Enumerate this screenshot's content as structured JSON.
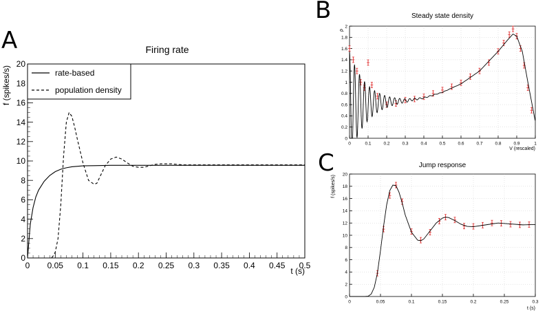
{
  "panels": {
    "A": {
      "letter": "A",
      "chart_data": {
        "type": "line",
        "title": "Firing rate",
        "xlabel": "t (s)",
        "ylabel": "f (spikes/s)",
        "xlim": [
          0,
          0.5
        ],
        "ylim": [
          0,
          20
        ],
        "x_ticks": [
          "0",
          "0.05",
          "0.1",
          "0.15",
          "0.2",
          "0.25",
          "0.3",
          "0.35",
          "0.4",
          "0.45",
          "0.5"
        ],
        "y_ticks": [
          "0",
          "2",
          "4",
          "6",
          "8",
          "10",
          "12",
          "14",
          "16",
          "18",
          "20"
        ],
        "legend_position": "top-left",
        "series": [
          {
            "name": "rate-based",
            "style": "solid",
            "x": [
              0,
              0.005,
              0.01,
              0.015,
              0.02,
              0.03,
              0.04,
              0.05,
              0.06,
              0.07,
              0.08,
              0.1,
              0.12,
              0.15,
              0.2,
              0.3,
              0.4,
              0.5
            ],
            "y": [
              0,
              3.5,
              5.2,
              6.3,
              7.0,
              7.9,
              8.5,
              8.9,
              9.15,
              9.3,
              9.4,
              9.5,
              9.52,
              9.55,
              9.55,
              9.55,
              9.55,
              9.55
            ]
          },
          {
            "name": "population density",
            "style": "dashed",
            "x": [
              0,
              0.04,
              0.045,
              0.05,
              0.055,
              0.06,
              0.065,
              0.07,
              0.075,
              0.08,
              0.085,
              0.09,
              0.1,
              0.11,
              0.12,
              0.125,
              0.13,
              0.14,
              0.15,
              0.16,
              0.17,
              0.18,
              0.19,
              0.2,
              0.21,
              0.22,
              0.23,
              0.24,
              0.25,
              0.26,
              0.27,
              0.28,
              0.3,
              0.35,
              0.4,
              0.45,
              0.5
            ],
            "y": [
              0,
              0,
              0.1,
              0.6,
              2.0,
              5.5,
              10.5,
              14.0,
              15.0,
              14.6,
              13.5,
              12.2,
              9.8,
              8.0,
              7.6,
              7.7,
              8.3,
              9.5,
              10.2,
              10.4,
              10.2,
              9.8,
              9.45,
              9.35,
              9.35,
              9.5,
              9.65,
              9.7,
              9.7,
              9.7,
              9.65,
              9.6,
              9.6,
              9.6,
              9.6,
              9.6,
              9.6
            ]
          }
        ]
      }
    },
    "B": {
      "letter": "B",
      "chart_data": {
        "type": "line",
        "title": "Steady state density",
        "xlabel": "V (rescaled)",
        "ylabel": "ρ",
        "xlim": [
          0,
          1
        ],
        "ylim": [
          0,
          2
        ],
        "x_ticks": [
          "0",
          "0.1",
          "0.2",
          "0.3",
          "0.4",
          "0.5",
          "0.6",
          "0.7",
          "0.8",
          "0.9",
          "1"
        ],
        "y_ticks": [
          "0",
          "0.2",
          "0.4",
          "0.6",
          "0.8",
          "1",
          "1.2",
          "1.4",
          "1.6",
          "1.8",
          "2"
        ],
        "series": [
          {
            "name": "",
            "style": "solid-oscillating",
            "x": [
              0,
              0.05,
              0.1,
              0.15,
              0.2,
              0.25,
              0.3,
              0.4,
              0.5,
              0.6,
              0.7,
              0.8,
              0.85,
              0.88,
              0.9,
              0.93,
              0.96,
              1.0
            ],
            "y": [
              0.6,
              0.62,
              0.63,
              0.64,
              0.65,
              0.66,
              0.67,
              0.72,
              0.82,
              0.97,
              1.2,
              1.55,
              1.75,
              1.86,
              1.82,
              1.55,
              1.0,
              0.3
            ]
          }
        ],
        "error_bars": {
          "x": [
            0.0,
            0.02,
            0.04,
            0.06,
            0.08,
            0.1,
            0.12,
            0.15,
            0.2,
            0.25,
            0.3,
            0.35,
            0.4,
            0.45,
            0.5,
            0.55,
            0.6,
            0.65,
            0.7,
            0.75,
            0.8,
            0.83,
            0.86,
            0.88,
            0.9,
            0.92,
            0.94,
            0.96,
            0.98
          ],
          "y": [
            1.6,
            1.4,
            1.2,
            1.0,
            0.9,
            1.35,
            0.95,
            0.75,
            0.6,
            0.62,
            0.68,
            0.7,
            0.74,
            0.8,
            0.86,
            0.92,
            0.99,
            1.1,
            1.2,
            1.35,
            1.55,
            1.7,
            1.85,
            1.95,
            1.82,
            1.6,
            1.3,
            0.9,
            0.5
          ]
        },
        "grid": true
      }
    },
    "C": {
      "letter": "C",
      "chart_data": {
        "type": "line",
        "title": "Jump response",
        "xlabel": "t (s)",
        "ylabel": "f (spikes/s)",
        "xlim": [
          0,
          0.3
        ],
        "ylim": [
          0,
          20
        ],
        "x_ticks": [
          "0",
          "0.05",
          "0.1",
          "0.15",
          "0.2",
          "0.25",
          "0.3"
        ],
        "y_ticks": [
          "0",
          "2",
          "4",
          "6",
          "8",
          "10",
          "12",
          "14",
          "16",
          "18",
          "20"
        ],
        "series": [
          {
            "name": "",
            "style": "solid",
            "x": [
              0,
              0.025,
              0.03,
              0.035,
              0.04,
              0.045,
              0.05,
              0.055,
              0.06,
              0.065,
              0.07,
              0.075,
              0.08,
              0.085,
              0.09,
              0.1,
              0.11,
              0.115,
              0.12,
              0.13,
              0.14,
              0.15,
              0.155,
              0.16,
              0.17,
              0.18,
              0.19,
              0.2,
              0.22,
              0.24,
              0.26,
              0.28,
              0.3
            ],
            "y": [
              0,
              0,
              0.05,
              0.4,
              1.5,
              3.8,
              7.5,
              11.5,
              15.0,
              17.3,
              18.2,
              18.1,
              17.0,
              15.3,
              13.3,
              10.5,
              9.2,
              9.1,
              9.4,
              10.7,
              12.0,
              12.8,
              12.95,
              12.9,
              12.4,
              11.8,
              11.45,
              11.4,
              11.7,
              12.0,
              11.85,
              11.7,
              11.75
            ]
          }
        ],
        "error_bars": {
          "x": [
            0.045,
            0.055,
            0.065,
            0.075,
            0.085,
            0.1,
            0.115,
            0.13,
            0.145,
            0.155,
            0.17,
            0.185,
            0.2,
            0.215,
            0.23,
            0.245,
            0.26,
            0.275,
            0.29
          ],
          "y": [
            3.8,
            11.0,
            16.5,
            18.2,
            15.5,
            10.6,
            9.2,
            10.5,
            12.3,
            12.95,
            12.5,
            11.5,
            11.45,
            11.65,
            12.0,
            11.95,
            11.8,
            11.7,
            11.75
          ]
        },
        "grid": true
      }
    }
  }
}
